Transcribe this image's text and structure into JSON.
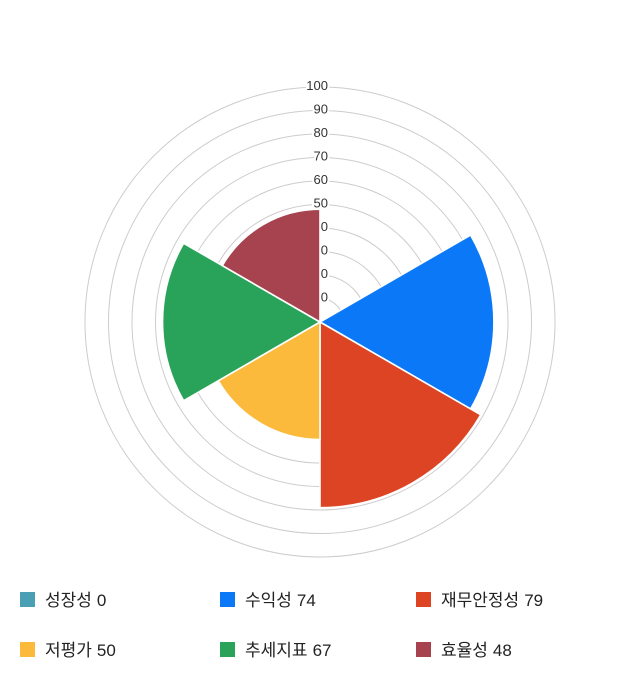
{
  "chart_data": {
    "type": "polar_area",
    "title": "",
    "categories": [
      "성장성",
      "수익성",
      "재무안정성",
      "저평가",
      "추세지표",
      "효율성"
    ],
    "values": [
      0,
      74,
      79,
      50,
      67,
      48
    ],
    "series": [
      {
        "id": "growth",
        "label": "성장성",
        "value": 0,
        "color": "#4a9fb5"
      },
      {
        "id": "profitability",
        "label": "수익성",
        "value": 74,
        "color": "#0b79f7"
      },
      {
        "id": "financial-stability",
        "label": "재무안정성",
        "value": 79,
        "color": "#dc4423"
      },
      {
        "id": "undervaluation",
        "label": "저평가",
        "value": 50,
        "color": "#fbba3c"
      },
      {
        "id": "trend-indicator",
        "label": "추세지표",
        "value": 67,
        "color": "#2aa35a"
      },
      {
        "id": "efficiency",
        "label": "효율성",
        "value": 48,
        "color": "#a7424f"
      }
    ],
    "axis": {
      "min": 0,
      "max": 100,
      "tick_step": 10,
      "tick_labels": [
        "10",
        "20",
        "30",
        "40",
        "50",
        "60",
        "70",
        "80",
        "90",
        "100"
      ]
    },
    "colors": {
      "grid": "#cccccc",
      "tick_label": "#333333",
      "legend_text": "#222222",
      "sector_stroke": "#ffffff",
      "background": "#ffffff"
    },
    "layout_hints": {
      "start_angle_deg": 0,
      "sector_span_deg": 60,
      "direction": "clockwise from top",
      "grid": "10 concentric rings",
      "tick_label_position": "top vertical axis, right-aligned, drawn beneath sectors (lower labels partially hidden)",
      "legend_position": "bottom, 3 columns x 2 rows"
    }
  }
}
